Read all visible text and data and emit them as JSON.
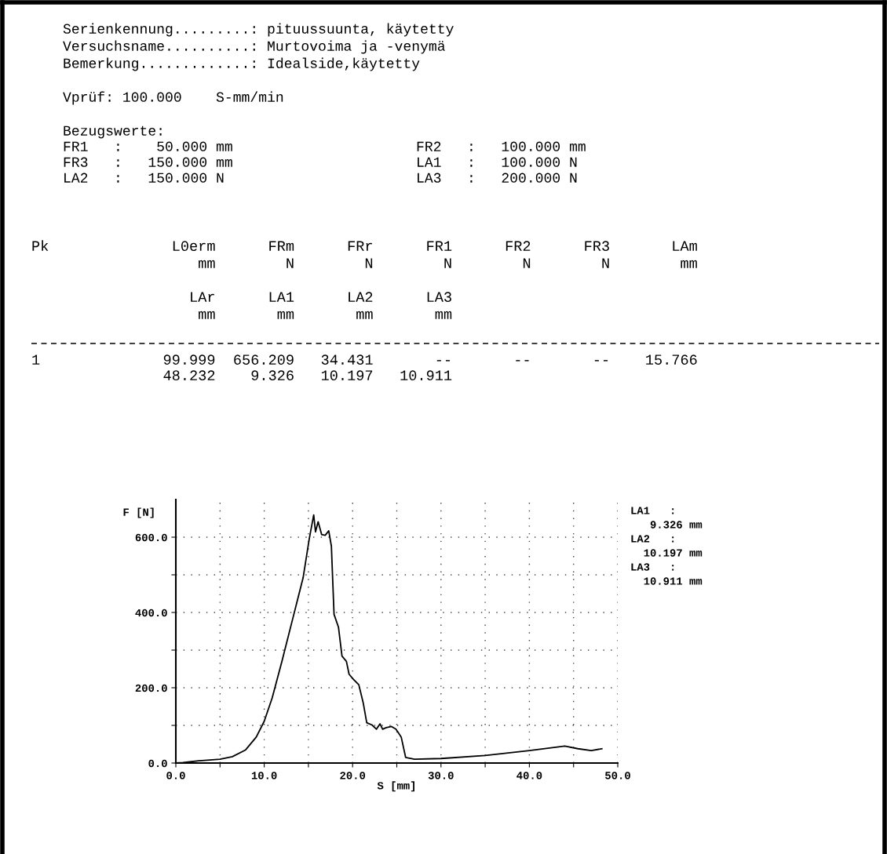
{
  "chart_data": {
    "type": "line",
    "xlabel": "S [mm]",
    "ylabel": "F [N]",
    "xlim": [
      0,
      50
    ],
    "ylim": [
      0,
      700
    ],
    "xticks": [
      {
        "value": 0,
        "label": "0.0"
      },
      {
        "value": 5,
        "label": null
      },
      {
        "value": 10,
        "label": "10.0"
      },
      {
        "value": 15,
        "label": null
      },
      {
        "value": 20,
        "label": "20.0"
      },
      {
        "value": 25,
        "label": null
      },
      {
        "value": 30,
        "label": "30.0"
      },
      {
        "value": 35,
        "label": null
      },
      {
        "value": 40,
        "label": "40.0"
      },
      {
        "value": 45,
        "label": null
      },
      {
        "value": 50,
        "label": "50.0"
      }
    ],
    "yticks": [
      {
        "value": 0,
        "label": "0.0"
      },
      {
        "value": 100,
        "label": null
      },
      {
        "value": 200,
        "label": "200.0"
      },
      {
        "value": 300,
        "label": null
      },
      {
        "value": 400,
        "label": "400.0"
      },
      {
        "value": 500,
        "label": null
      },
      {
        "value": 600,
        "label": "600.0"
      }
    ],
    "grid": true,
    "marker": "none",
    "line_style": "solid",
    "series": [
      {
        "color": "#000000",
        "x": [
          0,
          0.8,
          2.6,
          5,
          6.4,
          7.9,
          9.1,
          10,
          10.9,
          12,
          13.2,
          14.4,
          15.1,
          15.6,
          15.8,
          16.1,
          16.5,
          16.9,
          17.3,
          17.6,
          17.9,
          18.4,
          18.8,
          19.3,
          19.6,
          20.1,
          20.7,
          21.2,
          21.6,
          22.2,
          22.7,
          23.1,
          23.4,
          23.8,
          24.4,
          24.9,
          25.5,
          26.0,
          27,
          30,
          35,
          40,
          44,
          45.5,
          47,
          48.2
        ],
        "values": [
          0,
          1,
          6,
          10,
          17,
          35,
          69,
          111,
          173,
          270,
          381,
          492,
          596,
          659,
          614,
          641,
          607,
          605,
          617,
          576,
          395,
          361,
          284,
          270,
          236,
          222,
          208,
          160,
          107,
          101,
          90,
          104,
          90,
          94,
          97,
          90,
          69,
          15,
          10,
          12,
          20,
          33,
          45,
          38,
          33,
          38
        ]
      }
    ],
    "annotations": [
      "Serienkennung.........: pituussuunta, käytetty",
      "Versuchsname..........: Murtovoima ja -venymä",
      "Bemerkung.............: Idealside,käytetty",
      "Vprüf: 100.000    S-mm/min",
      "Bezugswerte:",
      "FR1   :    50.000 mm",
      "FR3   :   150.000 mm",
      "LA2   :   150.000 N",
      "FR2   :   100.000 mm",
      "LA1   :   100.000 N",
      "LA3   :   200.000 N",
      "Pk              L0erm      FRm      FRr      FR1      FR2      FR3       LAm",
      "                   mm        N        N        N        N        N        mm",
      "                  LAr      LA1      LA2      LA3",
      "                   mm       mm       mm       mm",
      "1              99.999  656.209   34.431       --       --       --    15.766",
      "               48.232    9.326   10.197   10.911",
      "LA1   :",
      "   9.326 mm",
      "LA2   :",
      "  10.197 mm",
      "LA3   :",
      "  10.911 mm"
    ]
  }
}
